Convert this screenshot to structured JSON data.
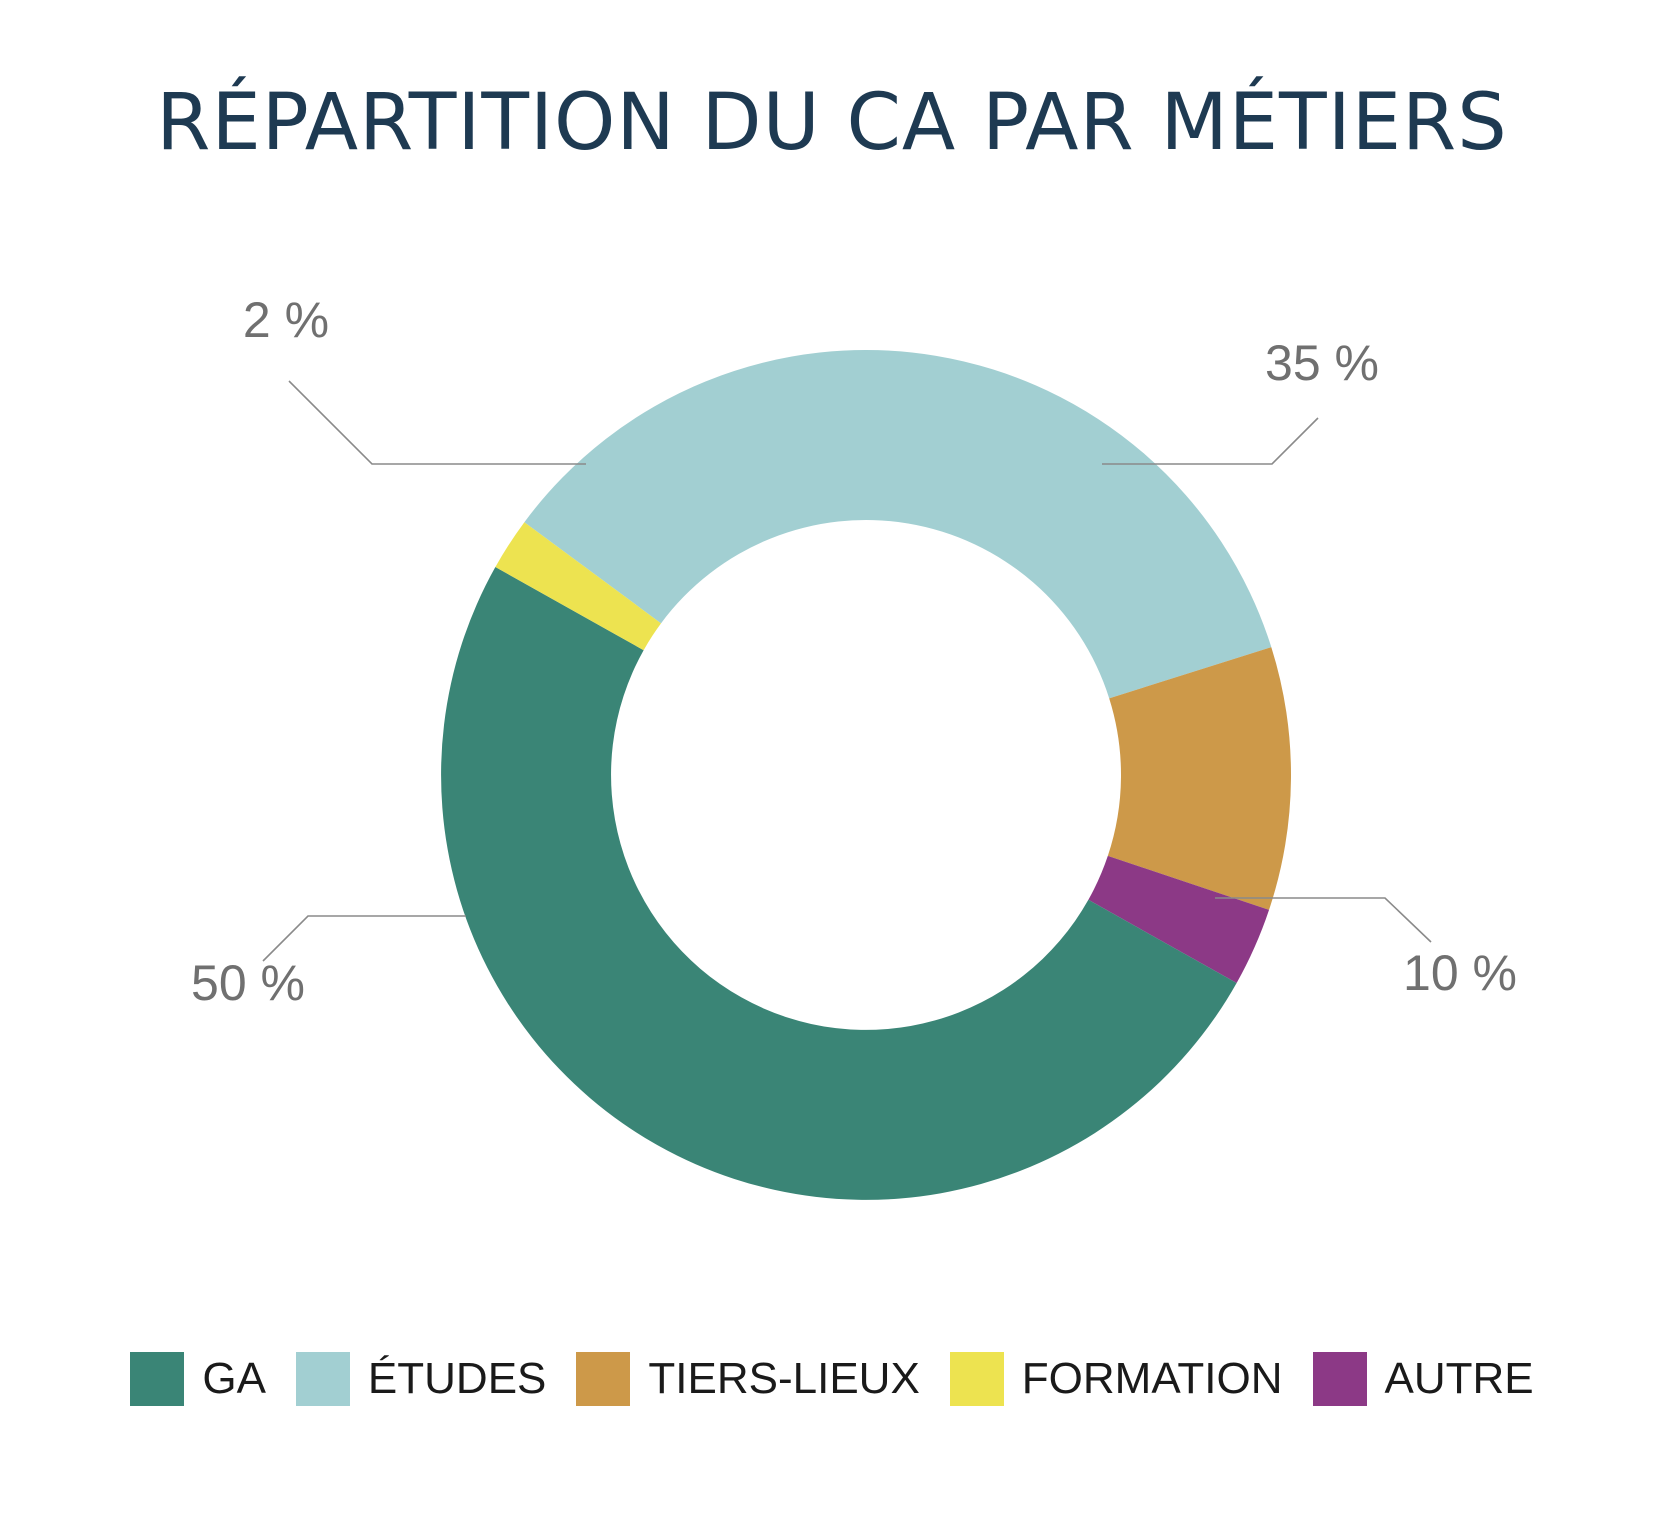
{
  "chart_data": {
    "type": "pie",
    "variant": "donut",
    "title": "RÉPARTITION DU CA PAR MÉTIERS",
    "unit": "%",
    "slices": [
      {
        "name": "GA",
        "value": 50,
        "label": "50 %",
        "color": "#3a8576"
      },
      {
        "name": "ÉTUDES",
        "value": 35,
        "label": "35 %",
        "color": "#a2cfd2"
      },
      {
        "name": "TIERS-LIEUX",
        "value": 10,
        "label": "10 %",
        "color": "#cd9949"
      },
      {
        "name": "FORMATION",
        "value": 2,
        "label": "2 %",
        "color": "#ede350"
      },
      {
        "name": "AUTRE",
        "value": 3,
        "label": "",
        "color": "#8c3986"
      }
    ],
    "legend": {
      "position": "bottom",
      "items": [
        "GA",
        "ÉTUDES",
        "TIERS-LIEUX",
        "FORMATION",
        "AUTRE"
      ]
    }
  }
}
